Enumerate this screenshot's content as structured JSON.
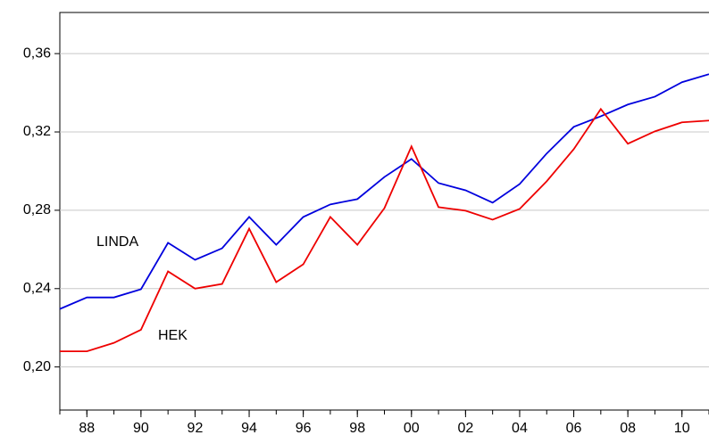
{
  "chart_data": {
    "type": "line",
    "x": [
      1987,
      1988,
      1989,
      1990,
      1991,
      1992,
      1993,
      1994,
      1995,
      1996,
      1997,
      1998,
      1999,
      2000,
      2001,
      2002,
      2003,
      2004,
      2005,
      2006,
      2007,
      2008,
      2009,
      2010,
      2011
    ],
    "series": [
      {
        "name": "LINDA",
        "color": "#0000dd",
        "values": [
          0.2296,
          0.2355,
          0.2355,
          0.2397,
          0.2634,
          0.2547,
          0.2606,
          0.2766,
          0.2624,
          0.2766,
          0.283,
          0.2857,
          0.297,
          0.3062,
          0.2939,
          0.2902,
          0.2839,
          0.2934,
          0.309,
          0.3226,
          0.328,
          0.334,
          0.338,
          0.3454,
          0.3495
        ]
      },
      {
        "name": "HEK",
        "color": "#ee0000",
        "values": [
          0.208,
          0.208,
          0.2123,
          0.219,
          0.2488,
          0.24,
          0.2424,
          0.2706,
          0.2433,
          0.2524,
          0.2766,
          0.2624,
          0.2811,
          0.3126,
          0.2816,
          0.2798,
          0.2752,
          0.2807,
          0.2948,
          0.3112,
          0.3317,
          0.314,
          0.3203,
          0.3249,
          0.3258
        ]
      }
    ],
    "xlim": [
      1987,
      2011
    ],
    "xticks": [
      {
        "value": 1988,
        "label": "88"
      },
      {
        "value": 1990,
        "label": "90"
      },
      {
        "value": 1992,
        "label": "92"
      },
      {
        "value": 1994,
        "label": "94"
      },
      {
        "value": 1996,
        "label": "96"
      },
      {
        "value": 1998,
        "label": "98"
      },
      {
        "value": 2000,
        "label": "00"
      },
      {
        "value": 2002,
        "label": "02"
      },
      {
        "value": 2004,
        "label": "04"
      },
      {
        "value": 2006,
        "label": "06"
      },
      {
        "value": 2008,
        "label": "08"
      },
      {
        "value": 2010,
        "label": "10"
      }
    ],
    "ylim": [
      0.178,
      0.381
    ],
    "yticks": [
      {
        "value": 0.2,
        "label": "0,20"
      },
      {
        "value": 0.24,
        "label": "0,24"
      },
      {
        "value": 0.28,
        "label": "0,28"
      },
      {
        "value": 0.32,
        "label": "0,32"
      },
      {
        "value": 0.36,
        "label": "0,36"
      }
    ],
    "grid": true
  }
}
